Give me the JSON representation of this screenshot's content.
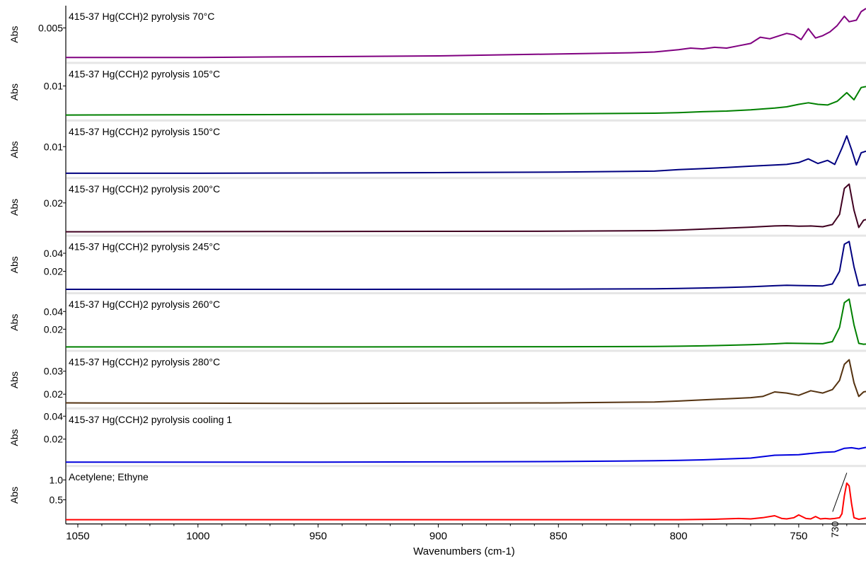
{
  "chart_data": {
    "type": "line",
    "layout": "stacked-panels",
    "xlabel": "Wavenumbers (cm-1)",
    "xlim": [
      1055,
      722
    ],
    "xticks": [
      1050,
      1000,
      950,
      900,
      850,
      800,
      750
    ],
    "x_reversed": true,
    "grid": false,
    "panels": [
      {
        "name": "415-37 Hg(CCH)2 pyrolysis 70°C",
        "ylabel": "Abs",
        "color": "#800080",
        "ylim": [
          0.001,
          0.0075
        ],
        "yticks": [
          {
            "v": 0.005,
            "t": "0.005"
          }
        ],
        "x": [
          1055,
          1000,
          950,
          900,
          880,
          860,
          840,
          820,
          810,
          800,
          795,
          790,
          785,
          780,
          775,
          770,
          766,
          762,
          758,
          755,
          752,
          749,
          746,
          743,
          740,
          737,
          734,
          731,
          729,
          726,
          724,
          722
        ],
        "y": [
          0.0012,
          0.0012,
          0.0013,
          0.0014,
          0.0015,
          0.0016,
          0.0017,
          0.0018,
          0.0019,
          0.0022,
          0.0024,
          0.0023,
          0.0025,
          0.0024,
          0.0027,
          0.003,
          0.0038,
          0.0036,
          0.004,
          0.0043,
          0.0041,
          0.0035,
          0.0049,
          0.0037,
          0.004,
          0.0045,
          0.0053,
          0.0065,
          0.0058,
          0.006,
          0.0071,
          0.0075
        ]
      },
      {
        "name": "415-37 Hg(CCH)2 pyrolysis 105°C",
        "ylabel": "Abs",
        "color": "#008000",
        "ylim": [
          0.0,
          0.0165
        ],
        "yticks": [
          {
            "v": 0.01,
            "t": "0.01"
          }
        ],
        "x": [
          1055,
          1000,
          950,
          900,
          850,
          810,
          800,
          790,
          780,
          770,
          760,
          755,
          750,
          746,
          742,
          738,
          734,
          730,
          727,
          724,
          722
        ],
        "y": [
          0.0005,
          0.0006,
          0.0007,
          0.0008,
          0.0009,
          0.0011,
          0.0013,
          0.0016,
          0.0018,
          0.0022,
          0.0028,
          0.0032,
          0.004,
          0.0045,
          0.004,
          0.0038,
          0.005,
          0.0078,
          0.0055,
          0.0095,
          0.0098
        ]
      },
      {
        "name": "415-37 Hg(CCH)2 pyrolysis 150°C",
        "ylabel": "Abs",
        "color": "#000080",
        "ylim": [
          0.001,
          0.0175
        ],
        "yticks": [
          {
            "v": 0.01,
            "t": "0.01"
          }
        ],
        "x": [
          1055,
          1000,
          950,
          900,
          850,
          810,
          800,
          790,
          780,
          770,
          760,
          755,
          750,
          746,
          742,
          738,
          735,
          732,
          730,
          728,
          726,
          724,
          722
        ],
        "y": [
          0.0013,
          0.0013,
          0.0014,
          0.0015,
          0.0017,
          0.002,
          0.0025,
          0.0028,
          0.0032,
          0.0036,
          0.004,
          0.0042,
          0.0048,
          0.006,
          0.0045,
          0.0055,
          0.0042,
          0.0095,
          0.0135,
          0.009,
          0.004,
          0.008,
          0.0085
        ]
      },
      {
        "name": "415-37 Hg(CCH)2 pyrolysis 200°C",
        "ylabel": "Abs",
        "color": "#400020",
        "ylim": [
          0.0,
          0.035
        ],
        "yticks": [
          {
            "v": 0.02,
            "t": "0.02"
          }
        ],
        "x": [
          1055,
          1000,
          950,
          900,
          850,
          810,
          800,
          790,
          780,
          770,
          760,
          755,
          750,
          745,
          740,
          736,
          733,
          731,
          729,
          727,
          725,
          723,
          722
        ],
        "y": [
          0.0,
          0.0001,
          0.0002,
          0.0003,
          0.0004,
          0.0008,
          0.0012,
          0.0018,
          0.0025,
          0.0032,
          0.004,
          0.0042,
          0.0038,
          0.004,
          0.0035,
          0.005,
          0.012,
          0.03,
          0.033,
          0.015,
          0.003,
          0.008,
          0.0085
        ]
      },
      {
        "name": "415-37 Hg(CCH)2 pyrolysis 245°C",
        "ylabel": "Abs",
        "color": "#000080",
        "ylim": [
          0.0,
          0.056
        ],
        "yticks": [
          {
            "v": 0.04,
            "t": "0.04"
          },
          {
            "v": 0.02,
            "t": "0.02"
          }
        ],
        "x": [
          1055,
          1000,
          950,
          900,
          850,
          810,
          800,
          790,
          780,
          770,
          760,
          755,
          750,
          745,
          740,
          736,
          733,
          731,
          729,
          727,
          725,
          723,
          722
        ],
        "y": [
          0.0,
          0.0,
          0.0,
          0.0001,
          0.0002,
          0.0006,
          0.001,
          0.0015,
          0.002,
          0.0028,
          0.004,
          0.0045,
          0.0042,
          0.004,
          0.0038,
          0.006,
          0.02,
          0.05,
          0.053,
          0.025,
          0.004,
          0.005,
          0.0052
        ]
      },
      {
        "name": "415-37 Hg(CCH)2 pyrolysis 260°C",
        "ylabel": "Abs",
        "color": "#008000",
        "ylim": [
          0.0,
          0.057
        ],
        "yticks": [
          {
            "v": 0.04,
            "t": "0.04"
          },
          {
            "v": 0.02,
            "t": "0.02"
          }
        ],
        "x": [
          1055,
          1000,
          950,
          900,
          850,
          810,
          800,
          790,
          780,
          770,
          760,
          755,
          750,
          745,
          740,
          736,
          733,
          731,
          729,
          727,
          725,
          723,
          722
        ],
        "y": [
          0.0,
          0.0,
          0.0,
          0.0001,
          0.0002,
          0.0005,
          0.0008,
          0.0012,
          0.0018,
          0.0025,
          0.0035,
          0.0042,
          0.004,
          0.0038,
          0.0036,
          0.006,
          0.022,
          0.05,
          0.054,
          0.025,
          0.004,
          0.003,
          0.0032
        ]
      },
      {
        "name": "415-37 Hg(CCH)2 pyrolysis 280°C",
        "ylabel": "Abs",
        "color": "#553311",
        "ylim": [
          0.0155,
          0.0375
        ],
        "yticks": [
          {
            "v": 0.03,
            "t": "0.03"
          },
          {
            "v": 0.02,
            "t": "0.02"
          }
        ],
        "x": [
          1055,
          1000,
          950,
          900,
          850,
          810,
          800,
          790,
          780,
          770,
          765,
          760,
          755,
          750,
          745,
          740,
          736,
          733,
          731,
          729,
          727,
          725,
          723,
          722
        ],
        "y": [
          0.0162,
          0.0161,
          0.016,
          0.0161,
          0.0162,
          0.0166,
          0.017,
          0.0175,
          0.018,
          0.0185,
          0.019,
          0.021,
          0.0205,
          0.0195,
          0.0215,
          0.0205,
          0.022,
          0.026,
          0.033,
          0.035,
          0.025,
          0.019,
          0.021,
          0.0212
        ]
      },
      {
        "name": "415-37 Hg(CCH)2 pyrolysis cooling 1",
        "ylabel": "Abs",
        "color": "#0000dd",
        "ylim": [
          0.0,
          0.044
        ],
        "yticks": [
          {
            "v": 0.04,
            "t": "0.04"
          },
          {
            "v": 0.02,
            "t": "0.02"
          }
        ],
        "x": [
          1055,
          1000,
          950,
          900,
          850,
          810,
          800,
          790,
          780,
          770,
          760,
          750,
          745,
          740,
          735,
          731,
          728,
          725,
          722
        ],
        "y": [
          0.0,
          0.0,
          0.0,
          0.0002,
          0.0005,
          0.0012,
          0.0015,
          0.002,
          0.0028,
          0.0035,
          0.006,
          0.0065,
          0.0075,
          0.0085,
          0.009,
          0.012,
          0.0125,
          0.0115,
          0.0128
        ]
      },
      {
        "name": "Acetylene; Ethyne",
        "ylabel": "Abs",
        "color": "#ff0000",
        "ylim": [
          0.0,
          1.27
        ],
        "yticks": [
          {
            "v": 1.0,
            "t": "1.0"
          },
          {
            "v": 0.5,
            "t": "0.5"
          }
        ],
        "x": [
          1055,
          800,
          785,
          775,
          770,
          765,
          760,
          757,
          755,
          752,
          750,
          747,
          745,
          743,
          741,
          739,
          737,
          735,
          733,
          732,
          731,
          730,
          729,
          728,
          727,
          725,
          723,
          722
        ],
        "y": [
          0.0,
          0.0,
          0.01,
          0.03,
          0.02,
          0.05,
          0.1,
          0.03,
          0.02,
          0.05,
          0.12,
          0.03,
          0.02,
          0.08,
          0.02,
          0.03,
          0.02,
          0.03,
          0.05,
          0.15,
          0.6,
          0.92,
          0.85,
          0.4,
          0.05,
          0.01,
          0.03,
          0.04
        ],
        "peak_label": "730"
      }
    ]
  }
}
